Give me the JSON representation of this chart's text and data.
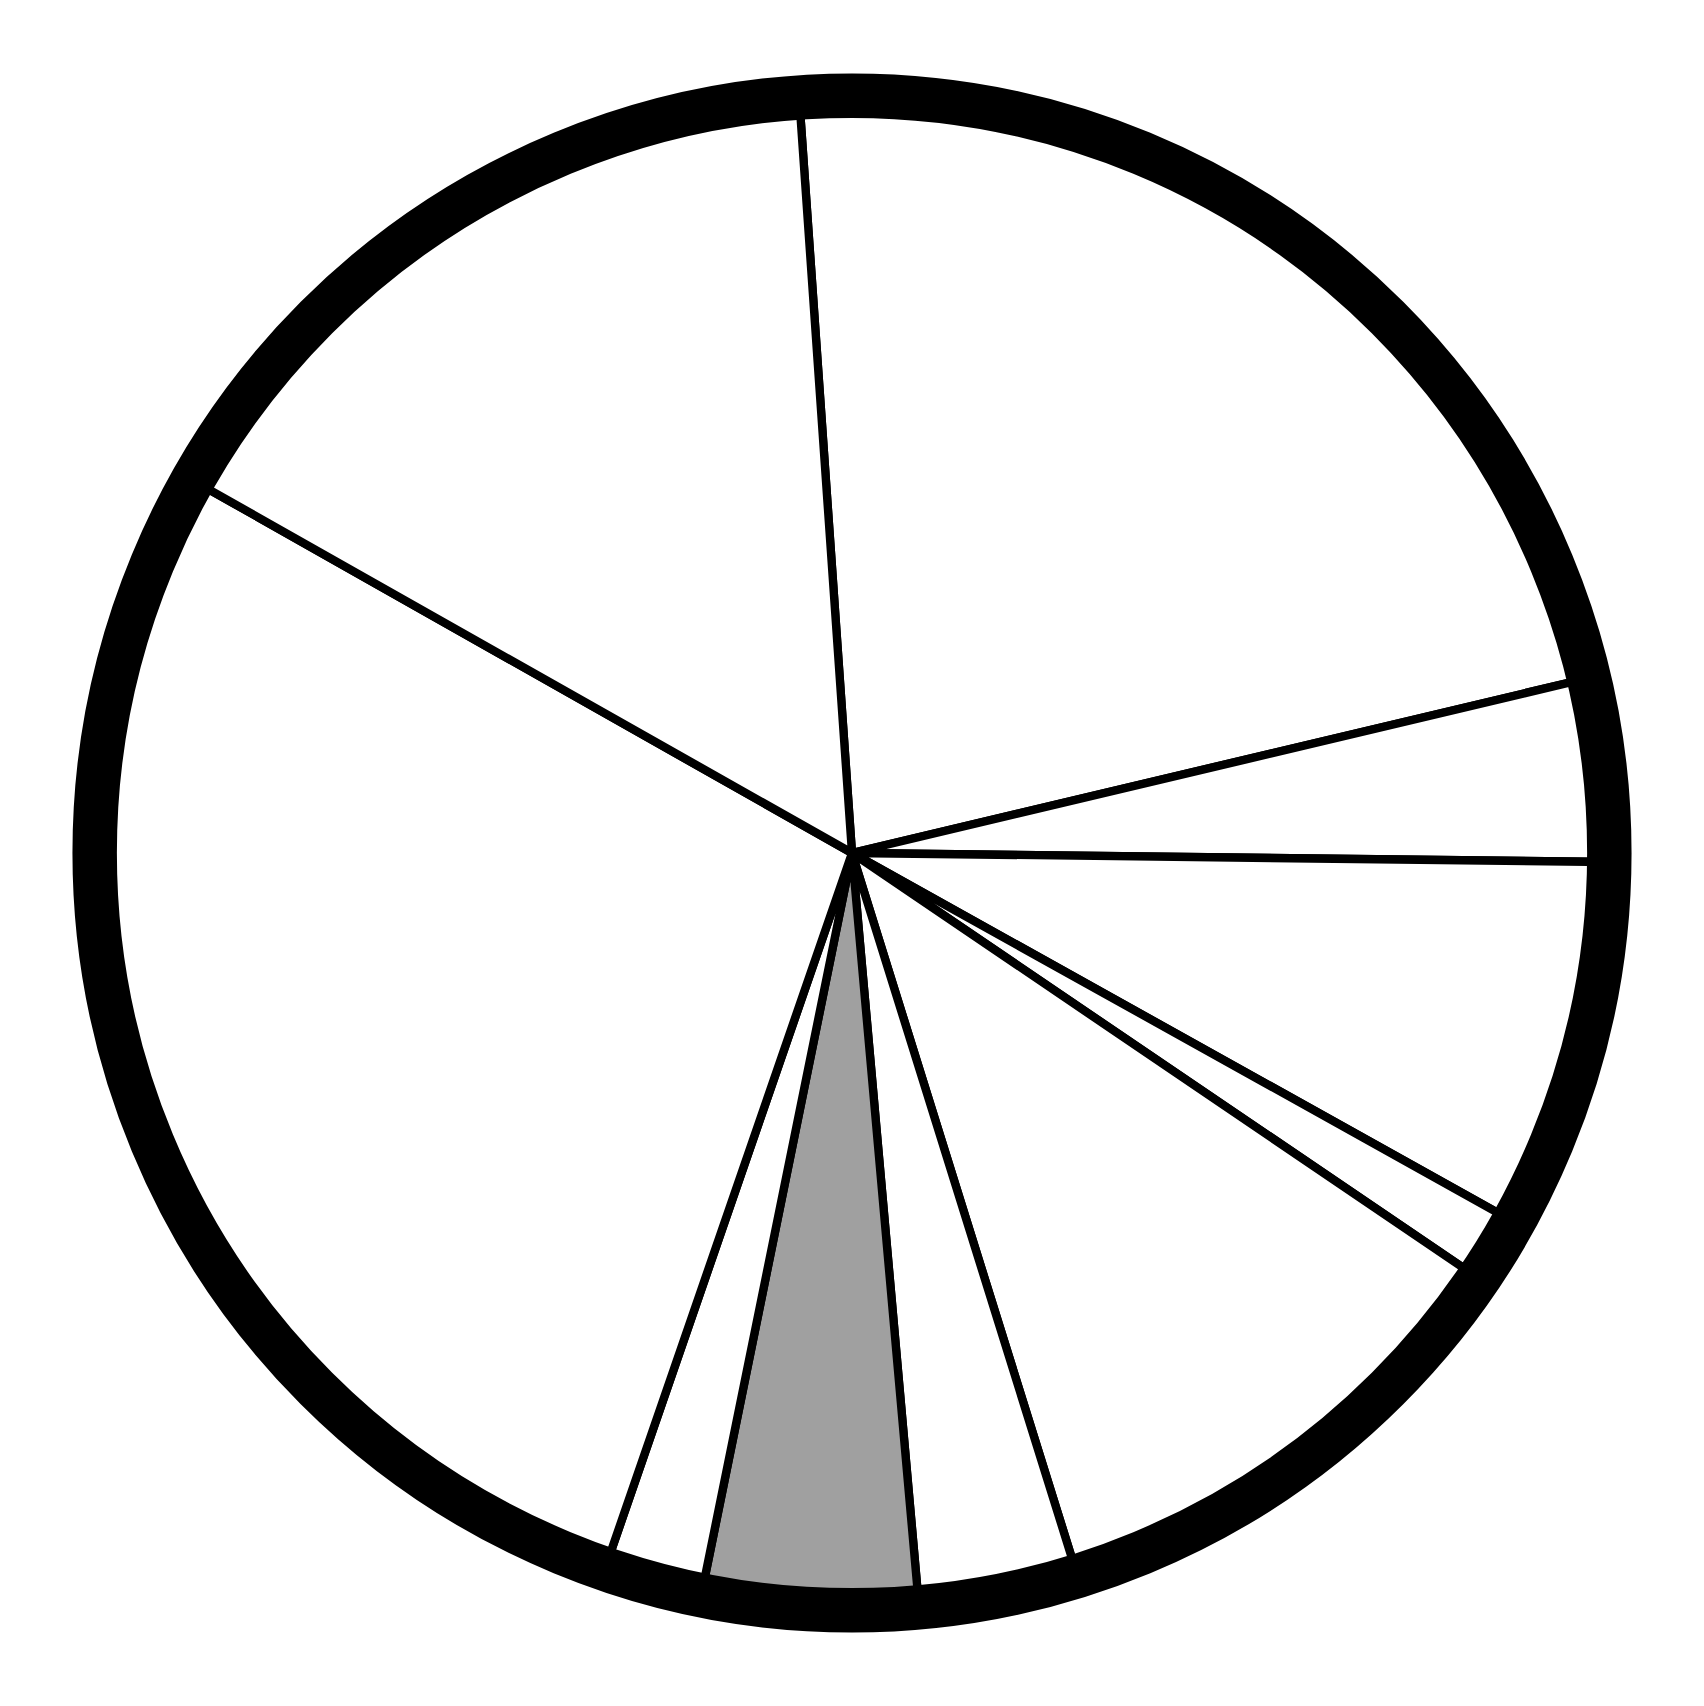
{
  "chart_data": {
    "type": "pie",
    "categories": [
      null,
      null,
      null,
      null,
      null,
      null,
      null,
      null,
      null,
      null
    ],
    "values": [
      22.4,
      3.9,
      7.9,
      1.4,
      10.7,
      3.4,
      4.6,
      2.1,
      27.9,
      15.7
    ],
    "colors": [
      "#ffffff",
      "#ffffff",
      "#ffffff",
      "#ffffff",
      "#ffffff",
      "#ffffff",
      "#a0a0a0",
      "#ffffff",
      "#ffffff",
      "#ffffff"
    ]
  }
}
